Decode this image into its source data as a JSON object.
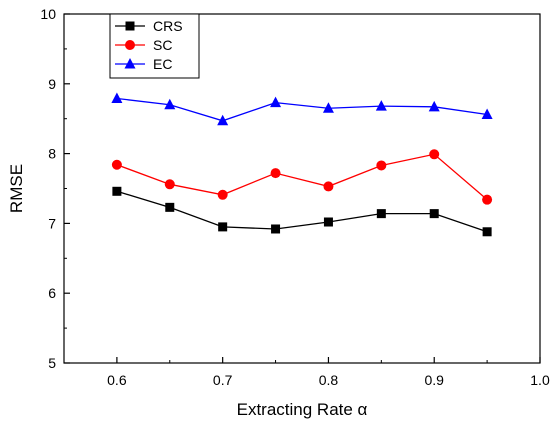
{
  "chart_data": {
    "type": "line",
    "title": "",
    "xlabel": "Extracting Rate α",
    "ylabel": "RMSE",
    "xlim": [
      0.55,
      1.0
    ],
    "ylim": [
      5,
      10
    ],
    "xticks": [
      "0.6",
      "0.7",
      "0.8",
      "0.9",
      "1.0"
    ],
    "yticks": [
      "5",
      "6",
      "7",
      "8",
      "9",
      "10"
    ],
    "grid": false,
    "legend_position": "top-left",
    "x": [
      0.6,
      0.65,
      0.7,
      0.75,
      0.8,
      0.85,
      0.9,
      0.95
    ],
    "series": [
      {
        "name": "CRS",
        "color": "#000000",
        "marker": "square",
        "values": [
          7.46,
          7.23,
          6.95,
          6.92,
          7.02,
          7.14,
          7.14,
          6.88
        ]
      },
      {
        "name": "SC",
        "color": "#ff0000",
        "marker": "circle",
        "values": [
          7.84,
          7.56,
          7.41,
          7.72,
          7.53,
          7.83,
          7.99,
          7.34
        ]
      },
      {
        "name": "EC",
        "color": "#0000ff",
        "marker": "triangle",
        "values": [
          8.79,
          8.7,
          8.47,
          8.73,
          8.65,
          8.68,
          8.67,
          8.56
        ]
      }
    ]
  }
}
